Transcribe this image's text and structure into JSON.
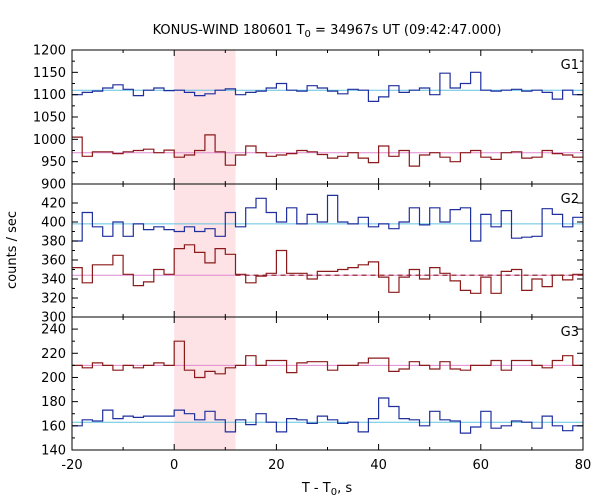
{
  "title": "KONUS-WIND 180601 T",
  "title_sub": "0",
  "title_rest": " = 34967s UT (09:42:47.000)",
  "xlabel": "T - T",
  "xlabel_sub": "0",
  "xlabel_rest": ", s",
  "ylabel": "counts / sec",
  "colors": {
    "blue": "#1f2f9e",
    "red": "#8b1a1a",
    "cyan": "#62c2e0",
    "pink": "#e08ad0",
    "shade": "#fde3e6"
  },
  "chart_data": {
    "type": "line",
    "x_range": [
      -20,
      80
    ],
    "x_ticks": [
      -20,
      0,
      20,
      40,
      60,
      80
    ],
    "x_tick_labels": [
      "-20",
      "0",
      "20",
      "40",
      "60",
      "80"
    ],
    "shaded_interval": [
      0,
      12
    ],
    "bin_edges": [
      -20,
      -18,
      -16,
      -14,
      -12,
      -10,
      -8,
      -6,
      -4,
      -2,
      0,
      2,
      4,
      6,
      8,
      10,
      12,
      14,
      16,
      18,
      20,
      22,
      24,
      26,
      28,
      30,
      32,
      34,
      36,
      38,
      40,
      42,
      44,
      46,
      48,
      50,
      52,
      54,
      56,
      58,
      60,
      62,
      64,
      66,
      68,
      70,
      72,
      74,
      76,
      78,
      80
    ],
    "panels": [
      {
        "label": "G1",
        "ylim": [
          900,
          1200
        ],
        "y_ticks": [
          900,
          950,
          1000,
          1050,
          1100,
          1150,
          1200
        ],
        "y_tick_labels": [
          "900",
          "950",
          "1000",
          "1050",
          "1100",
          "1150",
          "1200"
        ],
        "series": [
          {
            "color": "blue",
            "background": 1110,
            "background_color": "cyan",
            "values": [
              1100,
              1105,
              1108,
              1115,
              1122,
              1112,
              1098,
              1110,
              1115,
              1109,
              1110,
              1105,
              1098,
              1102,
              1110,
              1113,
              1100,
              1105,
              1108,
              1115,
              1125,
              1110,
              1108,
              1120,
              1115,
              1108,
              1102,
              1112,
              1110,
              1085,
              1095,
              1120,
              1105,
              1110,
              1115,
              1100,
              1148,
              1115,
              1125,
              1150,
              1110,
              1108,
              1110,
              1112,
              1108,
              1110,
              1105,
              1090,
              1110,
              1100
            ]
          },
          {
            "color": "red",
            "background": 970,
            "background_color": "pink",
            "values": [
              1005,
              962,
              972,
              972,
              968,
              972,
              975,
              978,
              970,
              976,
              960,
              965,
              975,
              1010,
              972,
              942,
              965,
              985,
              970,
              962,
              965,
              968,
              975,
              972,
              966,
              958,
              962,
              970,
              958,
              948,
              985,
              962,
              975,
              940,
              965,
              970,
              960,
              950,
              970,
              975,
              960,
              955,
              970,
              972,
              958,
              960,
              975,
              968,
              965,
              960
            ]
          }
        ]
      },
      {
        "label": "G2",
        "ylim": [
          300,
          440
        ],
        "y_ticks": [
          300,
          320,
          340,
          360,
          380,
          400,
          420
        ],
        "y_tick_labels": [
          "300",
          "320",
          "340",
          "360",
          "380",
          "400",
          "420"
        ],
        "series": [
          {
            "color": "blue",
            "background": 398,
            "background_color": "cyan",
            "values": [
              380,
              410,
              395,
              385,
              400,
              385,
              398,
              392,
              395,
              392,
              390,
              395,
              390,
              393,
              385,
              410,
              395,
              415,
              425,
              410,
              400,
              415,
              398,
              408,
              400,
              428,
              400,
              398,
              405,
              395,
              398,
              393,
              400,
              415,
              397,
              415,
              400,
              413,
              415,
              380,
              408,
              395,
              412,
              383,
              384,
              385,
              414,
              408,
              395,
              405
            ]
          },
          {
            "color": "red",
            "background": 344,
            "background_color": "pink",
            "background_dashed": true,
            "values": [
              352,
              336,
              355,
              355,
              365,
              345,
              333,
              337,
              350,
              345,
              372,
              376,
              368,
              357,
              372,
              366,
              345,
              336,
              343,
              346,
              370,
              346,
              346,
              340,
              348,
              348,
              350,
              352,
              355,
              358,
              342,
              326,
              342,
              350,
              340,
              352,
              346,
              338,
              328,
              325,
              342,
              325,
              348,
              350,
              328,
              340,
              332,
              344,
              339,
              345
            ]
          }
        ]
      },
      {
        "label": "G3",
        "ylim": [
          140,
          250
        ],
        "y_ticks": [
          140,
          160,
          180,
          200,
          220,
          240
        ],
        "y_tick_labels": [
          "140",
          "160",
          "180",
          "200",
          "220",
          "240"
        ],
        "series": [
          {
            "color": "red",
            "background": 210,
            "background_color": "pink",
            "values": [
              210,
              208,
              212,
              210,
              206,
              210,
              208,
              210,
              212,
              210,
              230,
              206,
              200,
              205,
              203,
              208,
              210,
              218,
              210,
              214,
              214,
              204,
              212,
              213,
              213,
              206,
              210,
              210,
              212,
              216,
              216,
              205,
              207,
              213,
              210,
              207,
              213,
              207,
              206,
              210,
              210,
              214,
              206,
              214,
              214,
              210,
              208,
              214,
              218,
              210
            ]
          },
          {
            "color": "blue",
            "background": 163,
            "background_color": "cyan",
            "values": [
              160,
              165,
              164,
              173,
              166,
              168,
              167,
              168,
              168,
              168,
              173,
              170,
              165,
              172,
              165,
              155,
              165,
              161,
              170,
              163,
              155,
              166,
              165,
              162,
              168,
              165,
              162,
              163,
              155,
              166,
              183,
              176,
              166,
              165,
              160,
              172,
              165,
              164,
              154,
              159,
              172,
              158,
              160,
              164,
              163,
              158,
              168,
              160,
              156,
              160
            ]
          }
        ]
      }
    ]
  }
}
